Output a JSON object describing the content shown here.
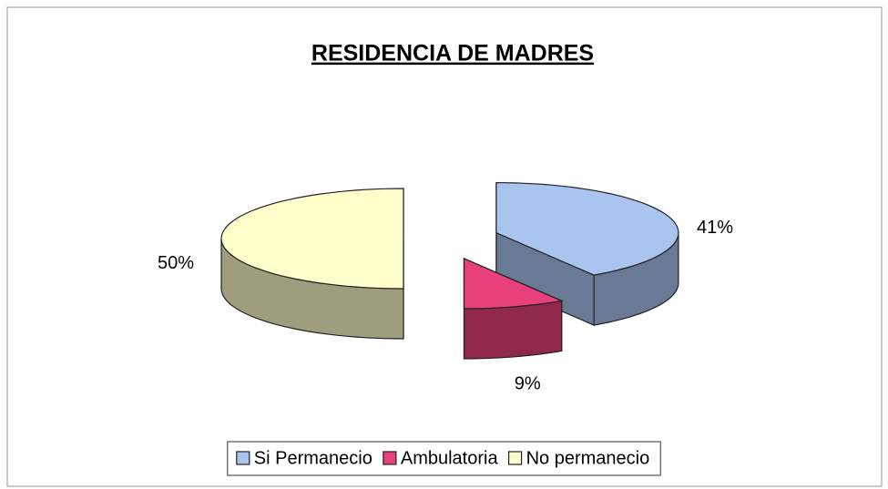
{
  "chart_data": {
    "type": "pie3d",
    "title": "RESIDENCIA DE MADRES",
    "categories": [
      "Si Permanecio",
      "Ambulatoria",
      "No permanecio"
    ],
    "values": [
      41,
      9,
      50
    ],
    "value_labels": [
      "41%",
      "9%",
      "50%"
    ],
    "colors": [
      "#a9c4ee",
      "#e8407c",
      "#ffffcc"
    ],
    "legend": "bottom"
  }
}
